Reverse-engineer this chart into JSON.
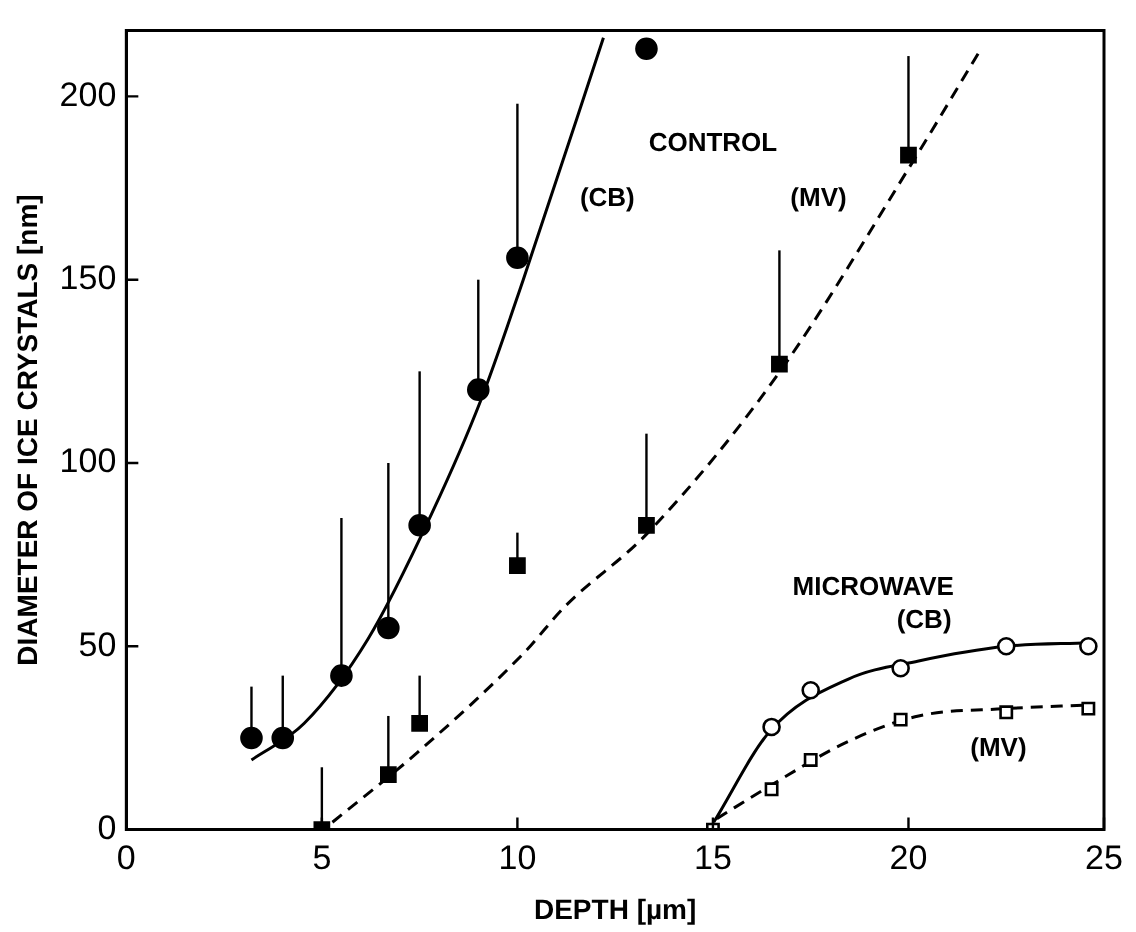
{
  "chart_data": {
    "type": "scatter",
    "xlabel": "DEPTH [µm]",
    "ylabel": "DIAMETER OF ICE CRYSTALS [nm]",
    "xlim": [
      0,
      25
    ],
    "ylim": [
      0,
      218
    ],
    "xticks": [
      0,
      5,
      10,
      15,
      20,
      25
    ],
    "yticks": [
      0,
      50,
      100,
      150,
      200
    ],
    "grid": false,
    "legend": false,
    "series": [
      {
        "marker": "circle",
        "color": "#000000",
        "x": [
          3.2,
          4.0,
          5.5,
          6.7,
          7.5,
          9.0,
          10.0,
          13.3
        ],
        "values": [
          25,
          25,
          42,
          55,
          83,
          120,
          156,
          213
        ],
        "errors": [
          [
            25,
            39
          ],
          [
            25,
            42
          ],
          [
            42,
            85
          ],
          [
            55,
            100
          ],
          [
            83,
            125
          ],
          [
            120,
            150
          ],
          [
            156,
            198
          ],
          null
        ]
      },
      {
        "marker": "square",
        "color": "#000000",
        "x": [
          5.0,
          6.7,
          7.5,
          10.0,
          13.3,
          16.7,
          20.0
        ],
        "values": [
          0,
          15,
          29,
          72,
          83,
          127,
          184
        ],
        "errors": [
          [
            0,
            17
          ],
          [
            15,
            31
          ],
          [
            29,
            42
          ],
          [
            72,
            81
          ],
          [
            83,
            108
          ],
          [
            127,
            158
          ],
          [
            184,
            211
          ]
        ]
      },
      {
        "marker": "circle",
        "color": "#000000",
        "x": [
          16.5,
          17.5,
          19.8,
          22.5,
          24.6
        ],
        "values": [
          28,
          38,
          44,
          50,
          50
        ]
      },
      {
        "marker": "square",
        "color": "#000000",
        "x": [
          15.0,
          16.5,
          17.5,
          19.8,
          22.5,
          24.6
        ],
        "values": [
          0,
          11,
          19,
          30,
          32,
          33
        ]
      },
      {
        "type": "line",
        "marker": "none",
        "line_style": "solid",
        "color": "#000000",
        "x": [
          3.2,
          4.55,
          6.18,
          7.8,
          9.06,
          10.15,
          12.2
        ],
        "values": [
          19,
          29,
          52,
          86,
          117,
          150,
          216
        ]
      },
      {
        "type": "line",
        "marker": "none",
        "line_style": "dashed",
        "color": "#000000",
        "x": [
          5.27,
          7.44,
          10.15,
          11.23,
          13.34,
          16.65,
          20.1,
          21.8
        ],
        "values": [
          2,
          21,
          48,
          61,
          81,
          124,
          182,
          212
        ]
      },
      {
        "type": "line",
        "marker": "none",
        "line_style": "solid",
        "color": "#000000",
        "x": [
          15.02,
          16.47,
          18.45,
          20.26,
          22.5,
          24.6
        ],
        "values": [
          2,
          27,
          41,
          46,
          50,
          51
        ]
      },
      {
        "type": "line",
        "marker": "none",
        "line_style": "dashed",
        "color": "#000000",
        "x": [
          15.1,
          16.47,
          18.45,
          20.26,
          22.5,
          24.6
        ],
        "values": [
          3,
          12,
          24,
          31,
          33,
          34
        ]
      }
    ],
    "annotations": [
      "CONTROL",
      "(CB)",
      "(MV)",
      "MICROWAVE",
      "(CB)",
      "(MV)"
    ]
  }
}
